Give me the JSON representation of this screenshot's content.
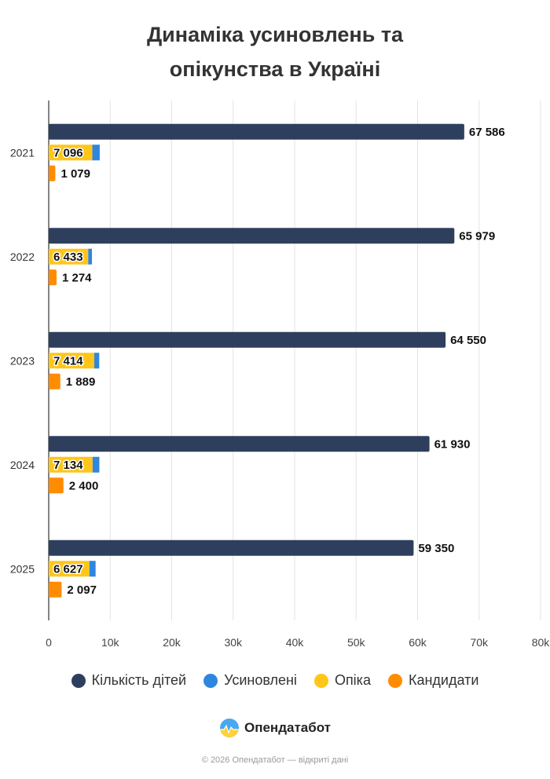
{
  "title_line1": "Динаміка усиновлень та",
  "title_line2": "опікунства в Україні",
  "brand": "Опендатабот",
  "footer": "© 2026 Опендатабот — відкриті дані",
  "colors": {
    "Кількість дітей": "#2e3f5e",
    "Усиновлені": "#2f86e0",
    "Опіка": "#ffc61a",
    "Кандидати": "#ff8c00"
  },
  "chart_data": {
    "type": "bar",
    "orientation": "horizontal",
    "stacked_series": [
      "Опіка",
      "Усиновлені"
    ],
    "categories": [
      "2021",
      "2022",
      "2023",
      "2024",
      "2025"
    ],
    "series": [
      {
        "name": "Кількість дітей",
        "values": [
          67586,
          65979,
          64550,
          61930,
          59350
        ]
      },
      {
        "name": "Опіка",
        "values": [
          7096,
          6433,
          7414,
          7134,
          6627
        ]
      },
      {
        "name": "Усиновлені",
        "values": [
          1200,
          600,
          800,
          1100,
          1000
        ]
      },
      {
        "name": "Кандидати",
        "values": [
          1079,
          1274,
          1889,
          2400,
          2097
        ]
      }
    ],
    "data_labels": {
      "Кількість дітей": [
        "67 586",
        "65 979",
        "64 550",
        "61 930",
        "59 350"
      ],
      "Опіка": [
        "7 096",
        "6 433",
        "7 414",
        "7 134",
        "6 627"
      ],
      "Кандидати": [
        "1 079",
        "1 274",
        "1 889",
        "2 400",
        "2 097"
      ]
    },
    "xlim": [
      0,
      80000
    ],
    "xticks": [
      0,
      10000,
      20000,
      30000,
      40000,
      50000,
      60000,
      70000,
      80000
    ],
    "xtick_labels": [
      "0",
      "10k",
      "20k",
      "30k",
      "40k",
      "50k",
      "60k",
      "70k",
      "80k"
    ],
    "grid": true,
    "legend_position": "bottom"
  }
}
